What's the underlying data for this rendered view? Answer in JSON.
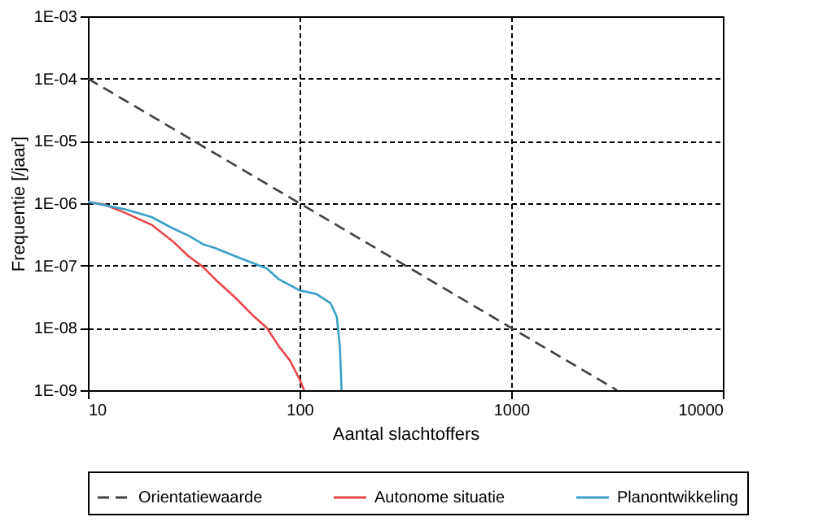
{
  "chart_data": {
    "type": "line",
    "xlabel": "Aantal slachtoffers",
    "ylabel": "Frequentie [/jaar]",
    "log": "xy",
    "grid": true,
    "legend": "bottom",
    "xlim": [
      10,
      10000
    ],
    "xticks": [
      10,
      100,
      1000,
      10000
    ],
    "ylim": [
      1e-09,
      0.001
    ],
    "yticks": [
      {
        "value": 1e-09,
        "label": "1E-09"
      },
      {
        "value": 1e-08,
        "label": "1E-08"
      },
      {
        "value": 1e-07,
        "label": "1E-07"
      },
      {
        "value": 1e-06,
        "label": "1E-06"
      },
      {
        "value": 1e-05,
        "label": "1E-05"
      },
      {
        "value": 0.0001,
        "label": "1E-04"
      },
      {
        "value": 0.001,
        "label": "1E-03"
      }
    ],
    "series": [
      {
        "name": "Orientatiewaarde",
        "color": "#404040",
        "line_style": "dashed",
        "x": [
          10,
          3162
        ],
        "values": [
          0.0001,
          1e-09
        ]
      },
      {
        "name": "Autonome situatie",
        "color": "#e8474a",
        "line_style": "solid",
        "x": [
          10,
          12,
          15,
          20,
          25,
          30,
          35,
          40,
          50,
          60,
          70,
          80,
          90,
          100,
          105
        ],
        "values": [
          1.05e-06,
          9.5e-07,
          7e-07,
          4.5e-07,
          2.5e-07,
          1.4e-07,
          9.5e-08,
          6e-08,
          3e-08,
          1.6e-08,
          1e-08,
          5e-09,
          3e-09,
          1.5e-09,
          1e-09
        ]
      },
      {
        "name": "Planontwikkeling",
        "color": "#3a9fc8",
        "line_style": "solid",
        "x": [
          10,
          15,
          20,
          25,
          30,
          35,
          40,
          50,
          60,
          70,
          80,
          100,
          120,
          140,
          150,
          155,
          158
        ],
        "values": [
          1.05e-06,
          8e-07,
          6e-07,
          4e-07,
          3e-07,
          2.2e-07,
          1.9e-07,
          1.4e-07,
          1.1e-07,
          9e-08,
          6e-08,
          4e-08,
          3.5e-08,
          2.5e-08,
          1.5e-08,
          5e-09,
          1e-09
        ]
      }
    ]
  }
}
